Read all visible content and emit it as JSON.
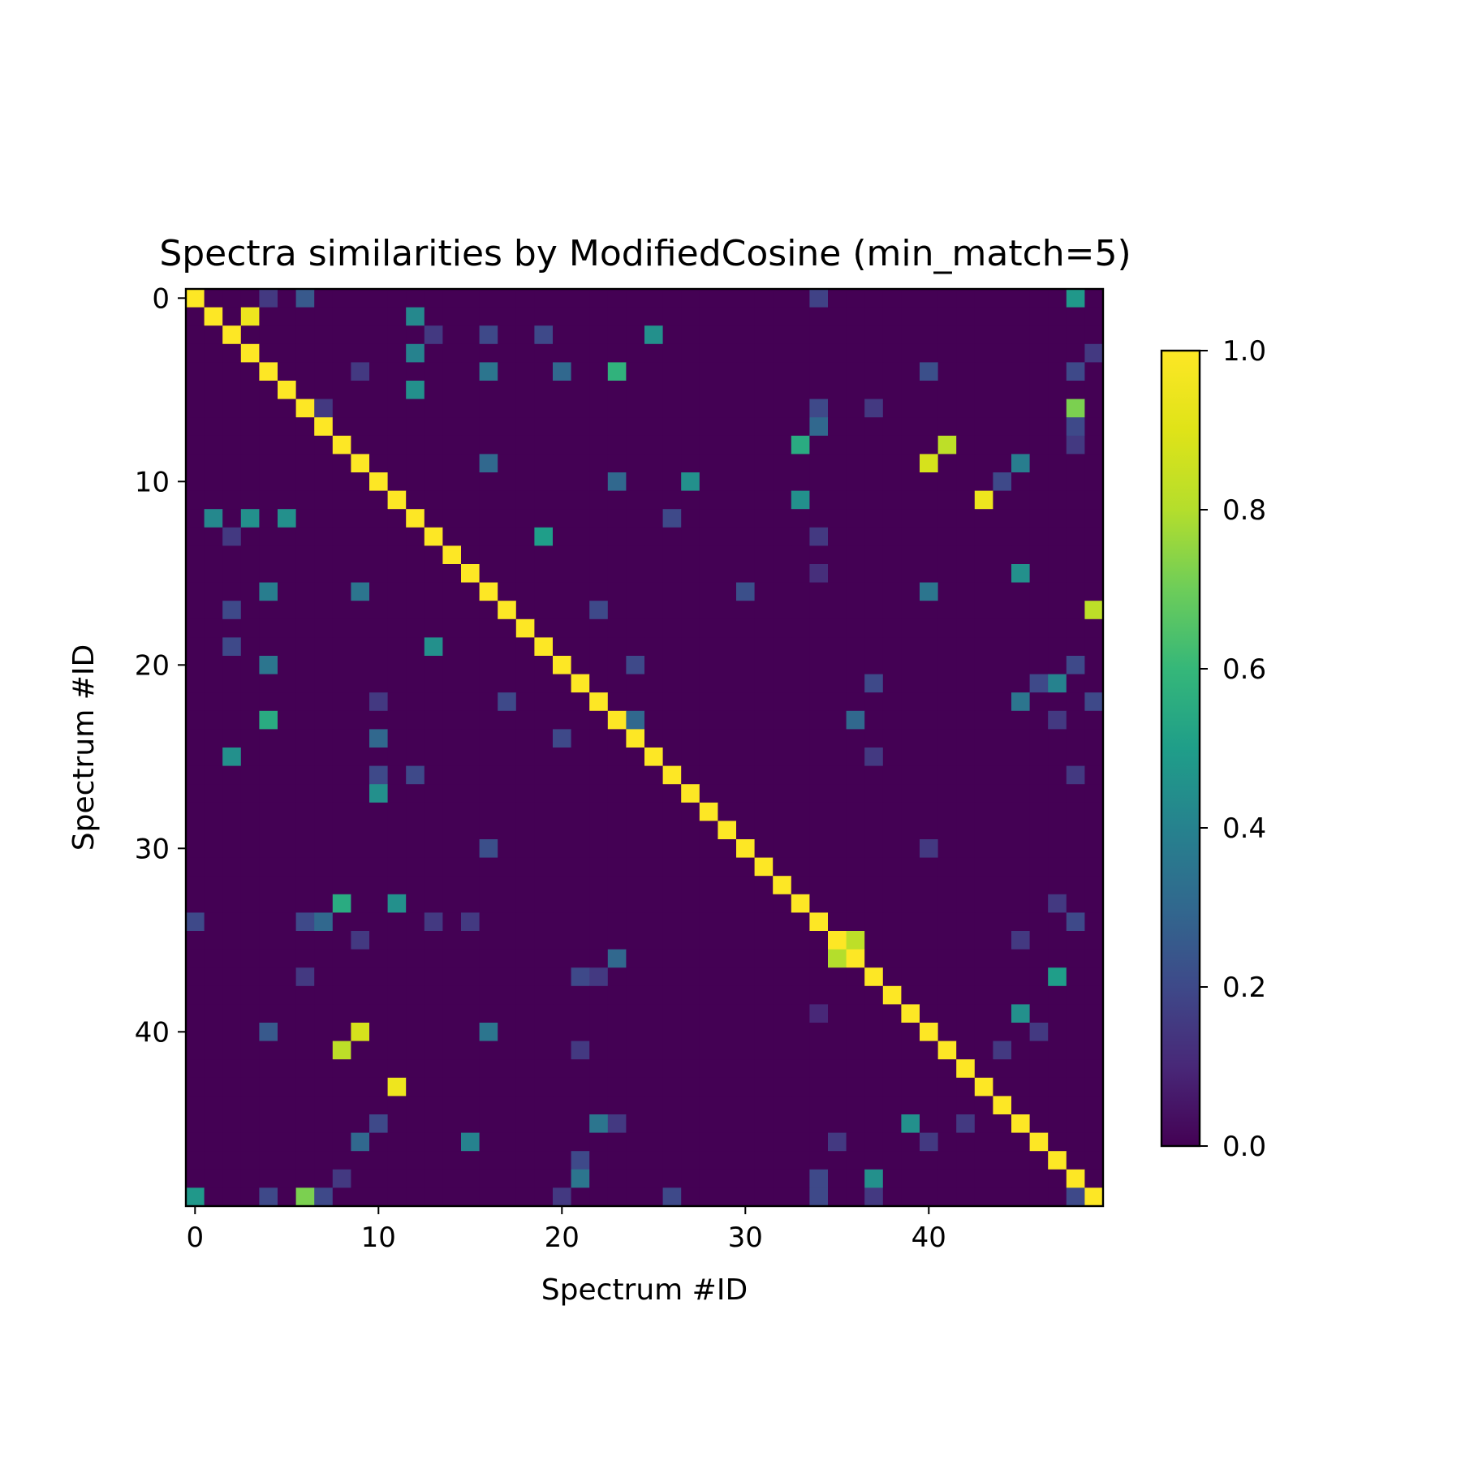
{
  "chart_data": {
    "type": "heatmap",
    "title": "Spectra similarities by ModifiedCosine (min_match=5)",
    "xlabel": "Spectrum #ID",
    "ylabel": "Spectrum #ID",
    "size": 50,
    "x_ticks": [
      0,
      10,
      20,
      30,
      40
    ],
    "y_ticks": [
      0,
      10,
      20,
      30,
      40
    ],
    "colorbar": {
      "min": 0.0,
      "max": 1.0,
      "ticks": [
        "0.0",
        "0.2",
        "0.4",
        "0.6",
        "0.8",
        "1.0"
      ],
      "colormap": "viridis"
    },
    "default_value": 0.0,
    "diagonal_value": 1.0,
    "cells": [
      [
        0,
        4,
        0.15
      ],
      [
        0,
        6,
        0.25
      ],
      [
        0,
        34,
        0.18
      ],
      [
        0,
        48,
        0.48
      ],
      [
        1,
        3,
        0.95
      ],
      [
        1,
        12,
        0.42
      ],
      [
        2,
        13,
        0.15
      ],
      [
        2,
        16,
        0.2
      ],
      [
        2,
        19,
        0.2
      ],
      [
        2,
        25,
        0.45
      ],
      [
        3,
        12,
        0.4
      ],
      [
        3,
        49,
        0.15
      ],
      [
        4,
        9,
        0.15
      ],
      [
        4,
        16,
        0.35
      ],
      [
        4,
        20,
        0.3
      ],
      [
        4,
        23,
        0.58
      ],
      [
        4,
        40,
        0.22
      ],
      [
        4,
        48,
        0.2
      ],
      [
        5,
        12,
        0.45
      ],
      [
        6,
        7,
        0.15
      ],
      [
        6,
        34,
        0.2
      ],
      [
        6,
        37,
        0.15
      ],
      [
        6,
        48,
        0.72
      ],
      [
        7,
        34,
        0.3
      ],
      [
        7,
        48,
        0.2
      ],
      [
        8,
        33,
        0.55
      ],
      [
        8,
        41,
        0.82
      ],
      [
        8,
        48,
        0.15
      ],
      [
        9,
        16,
        0.3
      ],
      [
        9,
        40,
        0.88
      ],
      [
        9,
        45,
        0.38
      ],
      [
        10,
        23,
        0.3
      ],
      [
        10,
        27,
        0.45
      ],
      [
        10,
        44,
        0.2
      ],
      [
        11,
        33,
        0.45
      ],
      [
        11,
        43,
        0.95
      ],
      [
        12,
        1,
        0.42
      ],
      [
        12,
        3,
        0.45
      ],
      [
        12,
        5,
        0.45
      ],
      [
        12,
        26,
        0.2
      ],
      [
        13,
        2,
        0.15
      ],
      [
        13,
        19,
        0.5
      ],
      [
        13,
        34,
        0.15
      ],
      [
        15,
        45,
        0.45
      ],
      [
        15,
        34,
        0.12
      ],
      [
        16,
        4,
        0.38
      ],
      [
        16,
        9,
        0.35
      ],
      [
        16,
        30,
        0.22
      ],
      [
        16,
        40,
        0.35
      ],
      [
        17,
        2,
        0.2
      ],
      [
        17,
        22,
        0.2
      ],
      [
        17,
        49,
        0.82
      ],
      [
        19,
        2,
        0.2
      ],
      [
        19,
        13,
        0.45
      ],
      [
        20,
        4,
        0.35
      ],
      [
        20,
        24,
        0.2
      ],
      [
        20,
        48,
        0.2
      ],
      [
        21,
        37,
        0.2
      ],
      [
        21,
        46,
        0.2
      ],
      [
        21,
        47,
        0.4
      ],
      [
        22,
        10,
        0.15
      ],
      [
        22,
        17,
        0.2
      ],
      [
        22,
        45,
        0.35
      ],
      [
        22,
        49,
        0.2
      ],
      [
        23,
        4,
        0.55
      ],
      [
        23,
        24,
        0.3
      ],
      [
        23,
        36,
        0.3
      ],
      [
        23,
        47,
        0.15
      ],
      [
        24,
        10,
        0.3
      ],
      [
        24,
        20,
        0.2
      ],
      [
        25,
        2,
        0.45
      ],
      [
        25,
        37,
        0.15
      ],
      [
        26,
        10,
        0.2
      ],
      [
        26,
        12,
        0.2
      ],
      [
        26,
        48,
        0.15
      ],
      [
        27,
        10,
        0.45
      ],
      [
        30,
        16,
        0.22
      ],
      [
        30,
        40,
        0.15
      ],
      [
        33,
        8,
        0.55
      ],
      [
        33,
        11,
        0.45
      ],
      [
        33,
        47,
        0.15
      ],
      [
        34,
        0,
        0.2
      ],
      [
        34,
        6,
        0.2
      ],
      [
        34,
        7,
        0.3
      ],
      [
        34,
        13,
        0.15
      ],
      [
        34,
        15,
        0.15
      ],
      [
        34,
        48,
        0.2
      ],
      [
        35,
        36,
        0.82
      ],
      [
        35,
        9,
        0.15
      ],
      [
        35,
        45,
        0.15
      ],
      [
        36,
        35,
        0.8
      ],
      [
        36,
        23,
        0.3
      ],
      [
        37,
        6,
        0.15
      ],
      [
        37,
        21,
        0.2
      ],
      [
        37,
        22,
        0.15
      ],
      [
        37,
        47,
        0.5
      ],
      [
        39,
        45,
        0.45
      ],
      [
        39,
        34,
        0.1
      ],
      [
        40,
        4,
        0.25
      ],
      [
        40,
        9,
        0.88
      ],
      [
        40,
        16,
        0.35
      ],
      [
        40,
        46,
        0.15
      ],
      [
        41,
        8,
        0.82
      ],
      [
        41,
        21,
        0.15
      ],
      [
        41,
        44,
        0.15
      ],
      [
        43,
        11,
        0.95
      ],
      [
        45,
        10,
        0.2
      ],
      [
        45,
        22,
        0.35
      ],
      [
        45,
        23,
        0.15
      ],
      [
        45,
        39,
        0.45
      ],
      [
        45,
        42,
        0.15
      ],
      [
        46,
        9,
        0.3
      ],
      [
        46,
        15,
        0.4
      ],
      [
        46,
        35,
        0.15
      ],
      [
        46,
        40,
        0.15
      ],
      [
        47,
        21,
        0.2
      ],
      [
        48,
        21,
        0.35
      ],
      [
        48,
        37,
        0.45
      ],
      [
        48,
        8,
        0.15
      ],
      [
        48,
        34,
        0.2
      ],
      [
        49,
        0,
        0.48
      ],
      [
        49,
        4,
        0.2
      ],
      [
        49,
        6,
        0.72
      ],
      [
        49,
        7,
        0.2
      ],
      [
        49,
        20,
        0.15
      ],
      [
        49,
        26,
        0.2
      ],
      [
        49,
        34,
        0.2
      ],
      [
        49,
        37,
        0.15
      ],
      [
        49,
        48,
        0.2
      ]
    ]
  }
}
